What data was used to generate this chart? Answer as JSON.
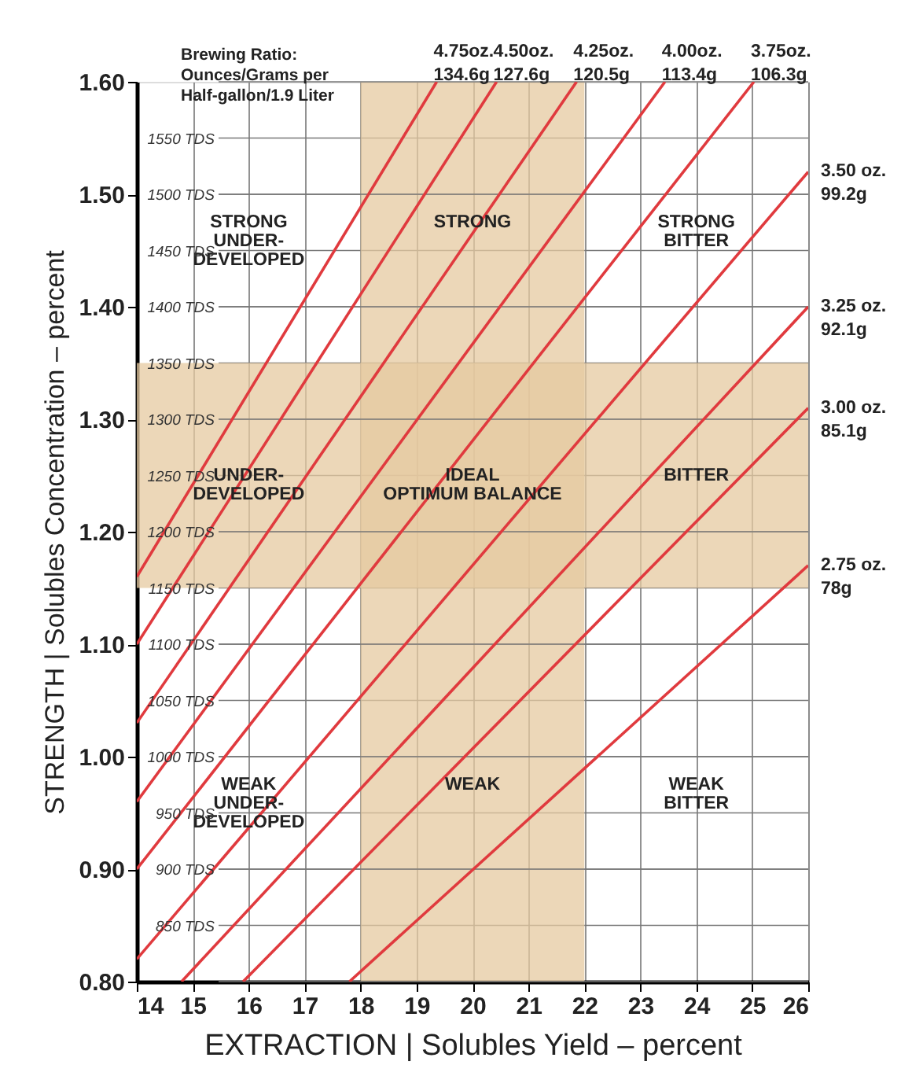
{
  "chart_data": {
    "type": "line",
    "xlabel": "EXTRACTION | Solubles Yield – percent",
    "ylabel": "STRENGTH | Solubles Concentration – percent",
    "legend_title": "Brewing Ratio:\nOunces/Grams per\nHalf-gallon/1.9 Liter",
    "xlim": [
      14,
      26
    ],
    "xticks": [
      14,
      15,
      16,
      17,
      18,
      19,
      20,
      21,
      22,
      23,
      24,
      25,
      26
    ],
    "ylim": [
      0.8,
      1.6
    ],
    "yticks": [
      {
        "value": 0.8,
        "label": "0.80"
      },
      {
        "value": 0.9,
        "label": "0.90"
      },
      {
        "value": 1.0,
        "label": "1.00"
      },
      {
        "value": 1.1,
        "label": "1.10"
      },
      {
        "value": 1.2,
        "label": "1.20"
      },
      {
        "value": 1.3,
        "label": "1.30"
      },
      {
        "value": 1.4,
        "label": "1.40"
      },
      {
        "value": 1.5,
        "label": "1.50"
      },
      {
        "value": 1.6,
        "label": "1.60"
      }
    ],
    "y2lim": [
      800,
      1600
    ],
    "y2ticks": [
      {
        "value": 850,
        "label": "850 TDS"
      },
      {
        "value": 900,
        "label": "900 TDS"
      },
      {
        "value": 950,
        "label": "950 TDS"
      },
      {
        "value": 1000,
        "label": "1000 TDS"
      },
      {
        "value": 1050,
        "label": "1050 TDS"
      },
      {
        "value": 1100,
        "label": "1100 TDS"
      },
      {
        "value": 1150,
        "label": "1150 TDS"
      },
      {
        "value": 1200,
        "label": "1200 TDS"
      },
      {
        "value": 1250,
        "label": "1250 TDS"
      },
      {
        "value": 1300,
        "label": "1300 TDS"
      },
      {
        "value": 1350,
        "label": "1350 TDS"
      },
      {
        "value": 1400,
        "label": "1400 TDS"
      },
      {
        "value": 1450,
        "label": "1450 TDS"
      },
      {
        "value": 1500,
        "label": "1500 TDS"
      },
      {
        "value": 1550,
        "label": "1550 TDS"
      }
    ],
    "grid": true,
    "marker": "none",
    "line_style": "solid",
    "series": [
      {
        "name": "4.75oz.\n134.6g",
        "color": "#e03a3e",
        "x": [
          14,
          19.36
        ],
        "values": [
          1.16,
          1.6
        ]
      },
      {
        "name": "4.50oz.\n127.6g",
        "color": "#e03a3e",
        "x": [
          14,
          20.43
        ],
        "values": [
          1.1,
          1.6
        ]
      },
      {
        "name": "4.25oz.\n120.5g",
        "color": "#e03a3e",
        "x": [
          14,
          21.86
        ],
        "values": [
          1.03,
          1.6
        ]
      },
      {
        "name": "4.00oz.\n113.4g",
        "color": "#e03a3e",
        "x": [
          14,
          23.44
        ],
        "values": [
          0.96,
          1.6
        ]
      },
      {
        "name": "3.75oz.\n106.3g",
        "color": "#e03a3e",
        "x": [
          14,
          25.03
        ],
        "values": [
          0.9,
          1.6
        ]
      },
      {
        "name": "3.50 oz.\n99.2g",
        "color": "#e03a3e",
        "x": [
          14,
          26
        ],
        "values": [
          0.82,
          1.52
        ]
      },
      {
        "name": "3.25 oz.\n92.1g",
        "color": "#e03a3e",
        "x": [
          14.8,
          26
        ],
        "values": [
          0.8,
          1.4
        ]
      },
      {
        "name": "3.00 oz.\n85.1g",
        "color": "#e03a3e",
        "x": [
          15.9,
          26
        ],
        "values": [
          0.8,
          1.31
        ]
      },
      {
        "name": "2.75 oz.\n78g",
        "color": "#e03a3e",
        "x": [
          17.8,
          26
        ],
        "values": [
          0.8,
          1.17
        ]
      }
    ],
    "bands": [
      {
        "axis": "x",
        "from": 18,
        "to": 22,
        "color": "#e6c9a0"
      },
      {
        "axis": "y",
        "from": 1.15,
        "to": 1.35,
        "color": "#e6c9a0"
      }
    ],
    "annotations": [
      "STRONG\nUNDER-\nDEVELOPED",
      "STRONG",
      "STRONG\nBITTER",
      "UNDER-\nDEVELOPED",
      "IDEAL\nOPTIMUM BALANCE",
      "BITTER",
      "WEAK\nUNDER-\nDEVELOPED",
      "WEAK",
      "WEAK\nBITTER"
    ]
  }
}
